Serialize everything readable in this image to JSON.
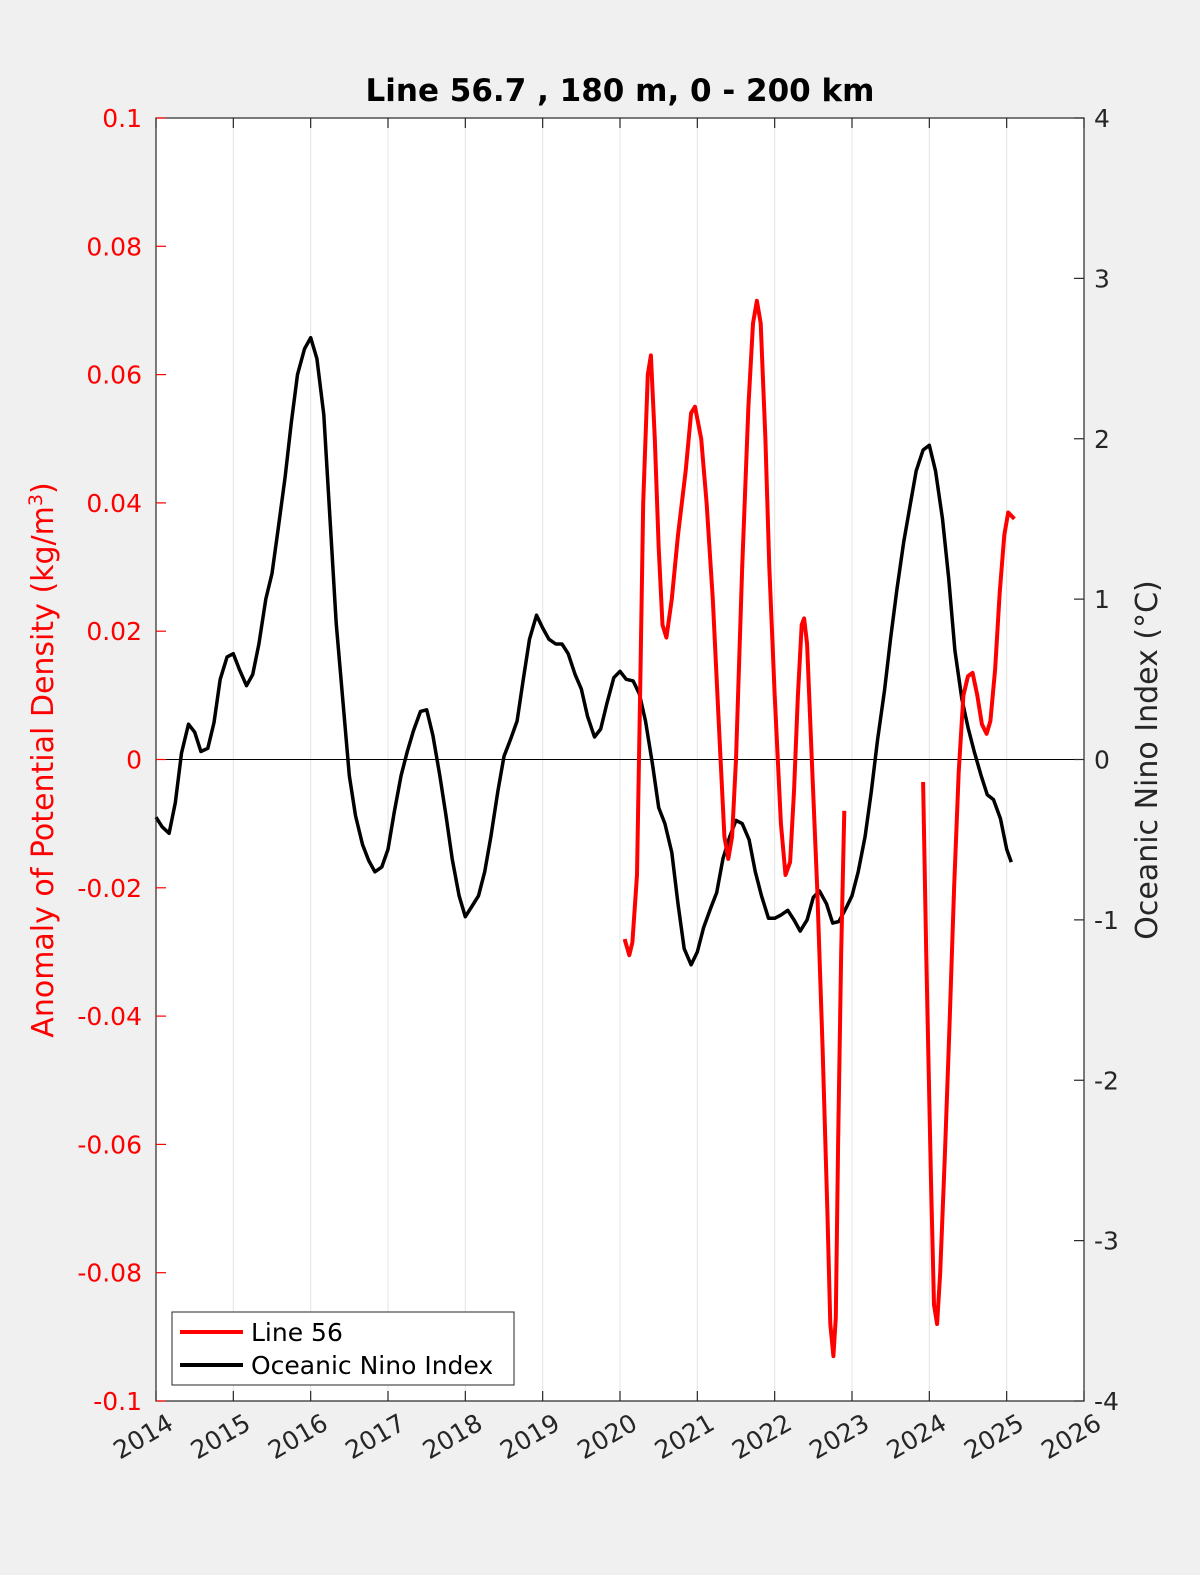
{
  "chart_data": {
    "type": "line",
    "title": "Line 56.7 , 180 m, 0 - 200 km",
    "xlabel": "",
    "xlim": [
      2014,
      2026
    ],
    "x_ticks": [
      "2014",
      "2015",
      "2016",
      "2017",
      "2018",
      "2019",
      "2020",
      "2021",
      "2022",
      "2023",
      "2024",
      "2025",
      "2026"
    ],
    "y_left": {
      "label_main": "Anomaly of Potential Density (kg/m",
      "label_sup": "3",
      "label_close": ")",
      "lim": [
        -0.1,
        0.1
      ],
      "ticks": [
        "0.1",
        "0.08",
        "0.06",
        "0.04",
        "0.02",
        "0",
        "-0.02",
        "-0.04",
        "-0.06",
        "-0.08",
        "-0.1"
      ],
      "color": "#ff0000"
    },
    "y_right": {
      "label": "Oceanic Nino Index (°C)",
      "lim": [
        -4,
        4
      ],
      "ticks": [
        "4",
        "3",
        "2",
        "1",
        "0",
        "-1",
        "-2",
        "-3",
        "-4"
      ],
      "color": "#262626"
    },
    "grid": "vertical",
    "legend_position": "bottom-left",
    "series": [
      {
        "name": "Line 56",
        "axis": "left",
        "color": "#ff0000",
        "segments": [
          [
            [
              2020.06,
              -0.028
            ],
            [
              2020.12,
              -0.0305
            ],
            [
              2020.16,
              -0.0285
            ],
            [
              2020.22,
              -0.018
            ],
            [
              2020.26,
              0.01
            ],
            [
              2020.3,
              0.04
            ],
            [
              2020.36,
              0.06
            ],
            [
              2020.4,
              0.063
            ],
            [
              2020.45,
              0.05
            ],
            [
              2020.5,
              0.033
            ],
            [
              2020.55,
              0.021
            ],
            [
              2020.6,
              0.019
            ],
            [
              2020.67,
              0.025
            ],
            [
              2020.75,
              0.035
            ],
            [
              2020.85,
              0.045
            ],
            [
              2020.92,
              0.054
            ],
            [
              2020.97,
              0.055
            ],
            [
              2021.05,
              0.05
            ],
            [
              2021.12,
              0.04
            ],
            [
              2021.2,
              0.025
            ],
            [
              2021.28,
              0.005
            ],
            [
              2021.35,
              -0.012
            ],
            [
              2021.4,
              -0.0155
            ],
            [
              2021.45,
              -0.012
            ],
            [
              2021.5,
              0.0
            ],
            [
              2021.58,
              0.03
            ],
            [
              2021.66,
              0.055
            ],
            [
              2021.72,
              0.068
            ],
            [
              2021.77,
              0.0715
            ],
            [
              2021.82,
              0.068
            ],
            [
              2021.88,
              0.05
            ],
            [
              2021.93,
              0.03
            ],
            [
              2022.0,
              0.01
            ],
            [
              2022.08,
              -0.01
            ],
            [
              2022.14,
              -0.018
            ],
            [
              2022.2,
              -0.016
            ],
            [
              2022.25,
              -0.005
            ],
            [
              2022.3,
              0.01
            ],
            [
              2022.35,
              0.021
            ],
            [
              2022.38,
              0.022
            ],
            [
              2022.42,
              0.018
            ],
            [
              2022.48,
              0.0
            ],
            [
              2022.55,
              -0.02
            ],
            [
              2022.62,
              -0.045
            ],
            [
              2022.68,
              -0.07
            ],
            [
              2022.72,
              -0.088
            ],
            [
              2022.76,
              -0.093
            ],
            [
              2022.79,
              -0.087
            ],
            [
              2022.82,
              -0.06
            ],
            [
              2022.86,
              -0.03
            ],
            [
              2022.9,
              -0.008
            ]
          ],
          [
            [
              2023.92,
              -0.0035
            ],
            [
              2023.96,
              -0.03
            ],
            [
              2024.02,
              -0.065
            ],
            [
              2024.06,
              -0.085
            ],
            [
              2024.1,
              -0.088
            ],
            [
              2024.14,
              -0.08
            ],
            [
              2024.2,
              -0.062
            ],
            [
              2024.26,
              -0.042
            ],
            [
              2024.32,
              -0.02
            ],
            [
              2024.38,
              -0.002
            ],
            [
              2024.44,
              0.01
            ],
            [
              2024.5,
              0.013
            ],
            [
              2024.56,
              0.0135
            ],
            [
              2024.62,
              0.01
            ],
            [
              2024.68,
              0.0055
            ],
            [
              2024.74,
              0.004
            ],
            [
              2024.79,
              0.006
            ],
            [
              2024.85,
              0.014
            ],
            [
              2024.91,
              0.026
            ],
            [
              2024.97,
              0.035
            ],
            [
              2025.02,
              0.0385
            ],
            [
              2025.06,
              0.038
            ],
            [
              2025.1,
              0.0375
            ]
          ]
        ]
      },
      {
        "name": "Oceanic Nino Index",
        "axis": "right",
        "color": "#000000",
        "points": [
          [
            2014.0,
            -0.36
          ],
          [
            2014.08,
            -0.42
          ],
          [
            2014.17,
            -0.46
          ],
          [
            2014.25,
            -0.27
          ],
          [
            2014.33,
            0.04
          ],
          [
            2014.42,
            0.22
          ],
          [
            2014.5,
            0.17
          ],
          [
            2014.58,
            0.05
          ],
          [
            2014.67,
            0.07
          ],
          [
            2014.75,
            0.23
          ],
          [
            2014.83,
            0.5
          ],
          [
            2014.92,
            0.64
          ],
          [
            2015.0,
            0.66
          ],
          [
            2015.08,
            0.56
          ],
          [
            2015.17,
            0.46
          ],
          [
            2015.25,
            0.53
          ],
          [
            2015.33,
            0.72
          ],
          [
            2015.42,
            1.0
          ],
          [
            2015.5,
            1.16
          ],
          [
            2015.58,
            1.44
          ],
          [
            2015.67,
            1.76
          ],
          [
            2015.75,
            2.1
          ],
          [
            2015.83,
            2.4
          ],
          [
            2015.92,
            2.56
          ],
          [
            2016.0,
            2.63
          ],
          [
            2016.08,
            2.5
          ],
          [
            2016.17,
            2.15
          ],
          [
            2016.25,
            1.5
          ],
          [
            2016.33,
            0.85
          ],
          [
            2016.42,
            0.35
          ],
          [
            2016.5,
            -0.1
          ],
          [
            2016.58,
            -0.35
          ],
          [
            2016.67,
            -0.53
          ],
          [
            2016.75,
            -0.63
          ],
          [
            2016.83,
            -0.7
          ],
          [
            2016.92,
            -0.67
          ],
          [
            2017.0,
            -0.56
          ],
          [
            2017.08,
            -0.33
          ],
          [
            2017.17,
            -0.1
          ],
          [
            2017.25,
            0.05
          ],
          [
            2017.33,
            0.18
          ],
          [
            2017.42,
            0.3
          ],
          [
            2017.5,
            0.31
          ],
          [
            2017.58,
            0.15
          ],
          [
            2017.67,
            -0.1
          ],
          [
            2017.75,
            -0.35
          ],
          [
            2017.83,
            -0.62
          ],
          [
            2017.92,
            -0.85
          ],
          [
            2018.0,
            -0.98
          ],
          [
            2018.08,
            -0.92
          ],
          [
            2018.17,
            -0.85
          ],
          [
            2018.25,
            -0.7
          ],
          [
            2018.33,
            -0.48
          ],
          [
            2018.42,
            -0.2
          ],
          [
            2018.5,
            0.02
          ],
          [
            2018.58,
            0.12
          ],
          [
            2018.67,
            0.24
          ],
          [
            2018.75,
            0.5
          ],
          [
            2018.83,
            0.75
          ],
          [
            2018.92,
            0.9
          ],
          [
            2019.0,
            0.82
          ],
          [
            2019.08,
            0.75
          ],
          [
            2019.17,
            0.72
          ],
          [
            2019.25,
            0.72
          ],
          [
            2019.33,
            0.66
          ],
          [
            2019.42,
            0.53
          ],
          [
            2019.5,
            0.44
          ],
          [
            2019.58,
            0.27
          ],
          [
            2019.67,
            0.14
          ],
          [
            2019.75,
            0.19
          ],
          [
            2019.83,
            0.35
          ],
          [
            2019.92,
            0.51
          ],
          [
            2020.0,
            0.55
          ],
          [
            2020.08,
            0.5
          ],
          [
            2020.17,
            0.49
          ],
          [
            2020.25,
            0.41
          ],
          [
            2020.33,
            0.24
          ],
          [
            2020.42,
            -0.03
          ],
          [
            2020.5,
            -0.3
          ],
          [
            2020.58,
            -0.4
          ],
          [
            2020.67,
            -0.58
          ],
          [
            2020.75,
            -0.9
          ],
          [
            2020.83,
            -1.18
          ],
          [
            2020.92,
            -1.28
          ],
          [
            2021.0,
            -1.2
          ],
          [
            2021.08,
            -1.05
          ],
          [
            2021.17,
            -0.93
          ],
          [
            2021.25,
            -0.83
          ],
          [
            2021.33,
            -0.62
          ],
          [
            2021.42,
            -0.48
          ],
          [
            2021.5,
            -0.38
          ],
          [
            2021.58,
            -0.4
          ],
          [
            2021.67,
            -0.5
          ],
          [
            2021.75,
            -0.7
          ],
          [
            2021.83,
            -0.85
          ],
          [
            2021.92,
            -0.99
          ],
          [
            2022.0,
            -0.99
          ],
          [
            2022.08,
            -0.97
          ],
          [
            2022.17,
            -0.94
          ],
          [
            2022.25,
            -1.0
          ],
          [
            2022.33,
            -1.07
          ],
          [
            2022.42,
            -1.0
          ],
          [
            2022.5,
            -0.86
          ],
          [
            2022.58,
            -0.82
          ],
          [
            2022.67,
            -0.9
          ],
          [
            2022.75,
            -1.02
          ],
          [
            2022.83,
            -1.01
          ],
          [
            2022.92,
            -0.93
          ],
          [
            2023.0,
            -0.85
          ],
          [
            2023.08,
            -0.7
          ],
          [
            2023.17,
            -0.48
          ],
          [
            2023.25,
            -0.2
          ],
          [
            2023.33,
            0.12
          ],
          [
            2023.42,
            0.43
          ],
          [
            2023.5,
            0.76
          ],
          [
            2023.58,
            1.06
          ],
          [
            2023.67,
            1.36
          ],
          [
            2023.75,
            1.58
          ],
          [
            2023.83,
            1.8
          ],
          [
            2023.92,
            1.93
          ],
          [
            2024.0,
            1.96
          ],
          [
            2024.08,
            1.8
          ],
          [
            2024.17,
            1.5
          ],
          [
            2024.25,
            1.13
          ],
          [
            2024.33,
            0.68
          ],
          [
            2024.42,
            0.38
          ],
          [
            2024.5,
            0.2
          ],
          [
            2024.58,
            0.05
          ],
          [
            2024.67,
            -0.1
          ],
          [
            2024.75,
            -0.22
          ],
          [
            2024.83,
            -0.25
          ],
          [
            2024.92,
            -0.37
          ],
          [
            2025.0,
            -0.56
          ],
          [
            2025.06,
            -0.64
          ]
        ]
      }
    ]
  }
}
